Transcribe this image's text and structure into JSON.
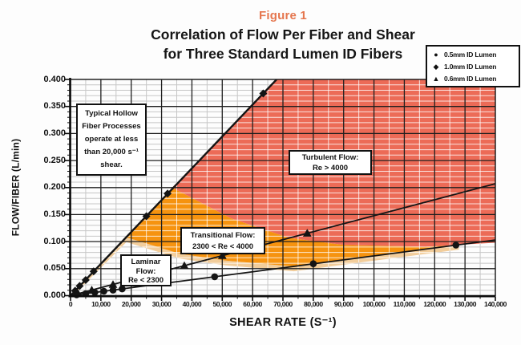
{
  "figure_label": "Figure 1",
  "title_line1": "Correlation of Flow Per Fiber and Shear",
  "title_line2": "for Three Standard Lumen ID Fibers",
  "colors": {
    "figure_label_accent": "#e5764e",
    "laminar_region": "#f2cd9b",
    "transitional_region": "#f6930f",
    "turbulent_region": "#ec6b57",
    "series_line": "#141414",
    "minor_grid_on_white": "#c6c6c6",
    "minor_grid_on_color": "#ffffff",
    "major_grid": "#1f1f1f"
  },
  "legend": {
    "items": [
      {
        "marker": "circle",
        "glyph": "●",
        "label": "0.5mm ID Lumen"
      },
      {
        "marker": "diamond",
        "glyph": "◆",
        "label": "1.0mm ID Lumen"
      },
      {
        "marker": "triangle",
        "glyph": "▲",
        "label": "0.6mm ID Lumen"
      }
    ]
  },
  "annotations": {
    "typical": {
      "lines": [
        "Typical Hollow",
        "Fiber Processes",
        "operate at less",
        "than 20,000 s⁻¹",
        "shear."
      ]
    },
    "turbulent": {
      "lines": [
        "Turbulent Flow:",
        "Re > 4000"
      ]
    },
    "transitional": {
      "lines": [
        "Transitional Flow:",
        "2300 < Re < 4000"
      ]
    },
    "laminar": {
      "lines": [
        "Laminar",
        "Flow:",
        "Re < 2300"
      ]
    }
  },
  "chart_data": {
    "type": "scatter",
    "title": "Correlation of Flow Per Fiber and Shear for Three Standard Lumen ID Fibers",
    "xlabel": "SHEAR RATE (S⁻¹)",
    "ylabel": "FLOW/FIBER (L/min)",
    "xlim": [
      0,
      140000
    ],
    "ylim": [
      0,
      0.4
    ],
    "x_major_step": 10000,
    "x_minor_step": 5000,
    "y_major_step": 0.05,
    "y_minor_step": 0.01,
    "grid": "on",
    "legend_position": "top-right",
    "x_tick_values": [
      0,
      10000,
      20000,
      30000,
      40000,
      50000,
      60000,
      70000,
      80000,
      90000,
      100000,
      110000,
      120000,
      130000,
      140000
    ],
    "x_tick_labels": [
      "0",
      "10,000",
      "20,000",
      "30,000",
      "40,000",
      "50,000",
      "60,000",
      "70,000",
      "80,000",
      "90,000",
      "100,000",
      "110,000",
      "120,000",
      "130,000",
      "140,000"
    ],
    "y_tick_values": [
      0,
      0.05,
      0.1,
      0.15,
      0.2,
      0.25,
      0.3,
      0.35,
      0.4
    ],
    "y_tick_labels": [
      "0.000",
      "0.050",
      "0.100",
      "0.150",
      "0.200",
      "0.250",
      "0.300",
      "0.350",
      "0.400"
    ],
    "series": [
      {
        "name": "0.5mm ID Lumen",
        "marker": "circle",
        "line_width": 1.8,
        "line_start": [
          0,
          0
        ],
        "line_end": [
          140000,
          0.103
        ],
        "points": [
          [
            2000,
            0.0015
          ],
          [
            5000,
            0.0037
          ],
          [
            8000,
            0.0059
          ],
          [
            11000,
            0.0081
          ],
          [
            14000,
            0.0103
          ],
          [
            17000,
            0.0125
          ],
          [
            47500,
            0.035
          ],
          [
            80000,
            0.059
          ],
          [
            127000,
            0.0935
          ]
        ]
      },
      {
        "name": "1.0mm ID Lumen",
        "marker": "diamond",
        "line_width": 2.4,
        "line_start": [
          0,
          0
        ],
        "line_end": [
          67900,
          0.4
        ],
        "points": [
          [
            1500,
            0.009
          ],
          [
            3000,
            0.018
          ],
          [
            5000,
            0.029
          ],
          [
            7600,
            0.045
          ],
          [
            25000,
            0.147
          ],
          [
            32000,
            0.189
          ],
          [
            63500,
            0.374
          ]
        ]
      },
      {
        "name": "0.6mm ID Lumen",
        "marker": "triangle",
        "line_width": 1.8,
        "line_start": [
          0,
          0
        ],
        "line_end": [
          140000,
          0.207
        ],
        "points": [
          [
            2500,
            0.0037
          ],
          [
            7000,
            0.0104
          ],
          [
            14000,
            0.0207
          ],
          [
            37500,
            0.0555
          ],
          [
            50000,
            0.074
          ],
          [
            78000,
            0.1154
          ]
        ]
      }
    ],
    "regions": {
      "laminar_label": "Laminar Flow: Re < 2300",
      "transitional_label": "Transitional Flow: 2300 < Re < 4000",
      "turbulent_label": "Turbulent Flow: Re > 4000",
      "re2300_curve": [
        [
          18400,
          0.108
        ],
        [
          36000,
          0.0775
        ],
        [
          51100,
          0.065
        ],
        [
          73600,
          0.054
        ],
        [
          100000,
          0.0736
        ],
        [
          128000,
          0.0941
        ]
      ],
      "re4000_curve": [
        [
          33500,
          0.2
        ],
        [
          53000,
          0.143
        ],
        [
          72000,
          0.107
        ],
        [
          90000,
          0.094
        ],
        [
          117000,
          0.0905
        ],
        [
          128000,
          0.0941
        ],
        [
          140000,
          0.098
        ]
      ],
      "turbulent_top_corner": [
        67900,
        0.4
      ]
    }
  }
}
